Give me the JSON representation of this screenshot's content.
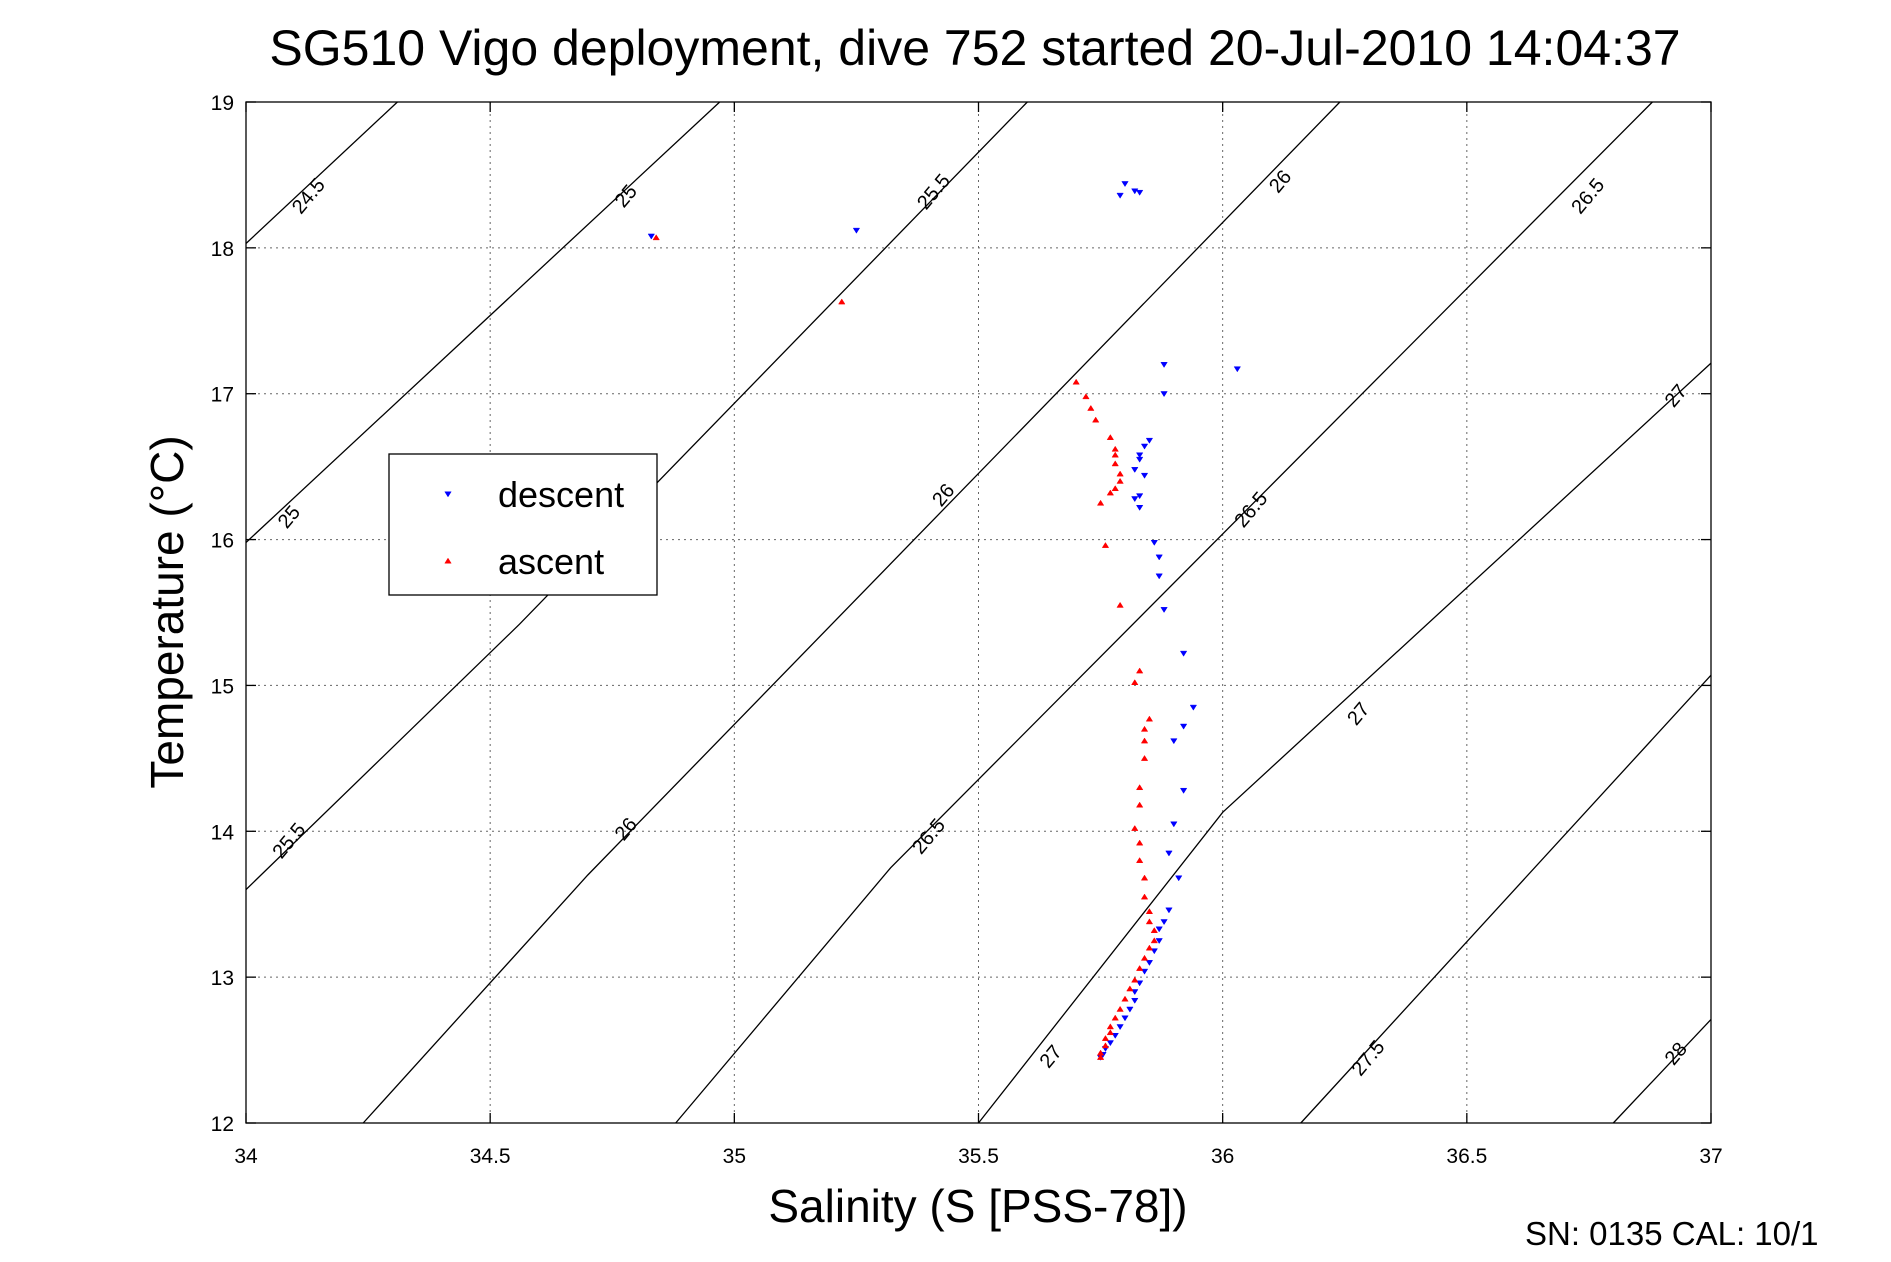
{
  "chart_data": {
    "type": "scatter",
    "title": "SG510 Vigo deployment, dive 752 started 20-Jul-2010 14:04:37",
    "xlabel": "Salinity (S [PSS-78])",
    "ylabel": "Temperature (°C)",
    "xlim": [
      34,
      37
    ],
    "ylim": [
      12,
      19
    ],
    "xticks": [
      "34",
      "34.5",
      "35",
      "35.5",
      "36",
      "36.5",
      "37"
    ],
    "yticks": [
      "12",
      "13",
      "14",
      "15",
      "16",
      "17",
      "18",
      "19"
    ],
    "grid": true,
    "legend_position": "left",
    "footer": "SN: 0135  CAL: 10/1",
    "contours": [
      {
        "sigma": 24.5,
        "points": [
          [
            34,
            18.03
          ],
          [
            34.31,
            19
          ]
        ]
      },
      {
        "sigma": 25.0,
        "points": [
          [
            34,
            15.98
          ],
          [
            34.97,
            19
          ]
        ]
      },
      {
        "sigma": 25.5,
        "points": [
          [
            34,
            13.6
          ],
          [
            34.56,
            15.42
          ],
          [
            35.6,
            19
          ]
        ]
      },
      {
        "sigma": 26.0,
        "points": [
          [
            34.24,
            12
          ],
          [
            34.7,
            13.7
          ],
          [
            36.24,
            19
          ]
        ]
      },
      {
        "sigma": 26.5,
        "points": [
          [
            34.88,
            12
          ],
          [
            35.32,
            13.75
          ],
          [
            36.88,
            19
          ]
        ]
      },
      {
        "sigma": 27.0,
        "points": [
          [
            35.5,
            12
          ],
          [
            36.0,
            14.13
          ],
          [
            37,
            17.21
          ]
        ]
      },
      {
        "sigma": 27.5,
        "points": [
          [
            36.16,
            12
          ],
          [
            37,
            15.07
          ]
        ]
      },
      {
        "sigma": 28.0,
        "points": [
          [
            36.8,
            12
          ],
          [
            37,
            12.71
          ]
        ]
      }
    ],
    "contour_labels": [
      {
        "text": "24.5",
        "s": 34.13,
        "t": 18.35,
        "angle": -50
      },
      {
        "text": "25",
        "s": 34.78,
        "t": 18.35,
        "angle": -50
      },
      {
        "text": "25.5",
        "s": 35.41,
        "t": 18.38,
        "angle": -50
      },
      {
        "text": "26",
        "s": 36.12,
        "t": 18.45,
        "angle": -50
      },
      {
        "text": "26.5",
        "s": 36.75,
        "t": 18.35,
        "angle": -50
      },
      {
        "text": "25",
        "s": 34.09,
        "t": 16.15,
        "angle": -50
      },
      {
        "text": "26",
        "s": 35.43,
        "t": 16.3,
        "angle": -50
      },
      {
        "text": "26.5",
        "s": 36.06,
        "t": 16.2,
        "angle": -50
      },
      {
        "text": "27",
        "s": 36.93,
        "t": 16.98,
        "angle": -50
      },
      {
        "text": "25.5",
        "s": 34.09,
        "t": 13.93,
        "angle": -50
      },
      {
        "text": "26",
        "s": 34.78,
        "t": 14.01,
        "angle": -50
      },
      {
        "text": "26.5",
        "s": 35.4,
        "t": 13.96,
        "angle": -50
      },
      {
        "text": "27",
        "s": 36.28,
        "t": 14.8,
        "angle": -50
      },
      {
        "text": "27",
        "s": 35.65,
        "t": 12.45,
        "angle": -50
      },
      {
        "text": "27.5",
        "s": 36.3,
        "t": 12.44,
        "angle": -50
      },
      {
        "text": "28",
        "s": 36.93,
        "t": 12.47,
        "angle": -50
      }
    ],
    "series": [
      {
        "name": "descent",
        "color": "#0000ff",
        "marker": "triangle-down",
        "points": [
          [
            35.8,
            18.44
          ],
          [
            35.79,
            18.36
          ],
          [
            35.82,
            18.39
          ],
          [
            35.83,
            18.38
          ],
          [
            34.83,
            18.08
          ],
          [
            35.25,
            18.12
          ],
          [
            35.88,
            17.2
          ],
          [
            35.88,
            17.0
          ],
          [
            36.03,
            17.17
          ],
          [
            35.85,
            16.68
          ],
          [
            35.84,
            16.64
          ],
          [
            35.83,
            16.58
          ],
          [
            35.83,
            16.55
          ],
          [
            35.82,
            16.48
          ],
          [
            35.84,
            16.44
          ],
          [
            35.83,
            16.3
          ],
          [
            35.82,
            16.28
          ],
          [
            35.83,
            16.22
          ],
          [
            35.86,
            15.98
          ],
          [
            35.87,
            15.88
          ],
          [
            35.87,
            15.75
          ],
          [
            35.88,
            15.52
          ],
          [
            35.92,
            15.22
          ],
          [
            35.94,
            14.85
          ],
          [
            35.92,
            14.72
          ],
          [
            35.9,
            14.62
          ],
          [
            35.92,
            14.28
          ],
          [
            35.9,
            14.05
          ],
          [
            35.89,
            13.85
          ],
          [
            35.91,
            13.68
          ],
          [
            35.89,
            13.46
          ],
          [
            35.88,
            13.38
          ],
          [
            35.87,
            13.33
          ],
          [
            35.87,
            13.25
          ],
          [
            35.86,
            13.18
          ],
          [
            35.85,
            13.1
          ],
          [
            35.84,
            13.04
          ],
          [
            35.83,
            12.96
          ],
          [
            35.82,
            12.9
          ],
          [
            35.82,
            12.84
          ],
          [
            35.81,
            12.78
          ],
          [
            35.8,
            12.72
          ],
          [
            35.79,
            12.66
          ],
          [
            35.78,
            12.6
          ],
          [
            35.77,
            12.55
          ],
          [
            35.76,
            12.51
          ],
          [
            35.755,
            12.47
          ],
          [
            35.75,
            12.45
          ]
        ]
      },
      {
        "name": "ascent",
        "color": "#ff0000",
        "marker": "triangle-up",
        "points": [
          [
            34.84,
            18.07
          ],
          [
            35.22,
            17.63
          ],
          [
            35.7,
            17.08
          ],
          [
            35.72,
            16.98
          ],
          [
            35.73,
            16.9
          ],
          [
            35.74,
            16.82
          ],
          [
            35.77,
            16.7
          ],
          [
            35.78,
            16.62
          ],
          [
            35.78,
            16.58
          ],
          [
            35.78,
            16.52
          ],
          [
            35.79,
            16.45
          ],
          [
            35.79,
            16.4
          ],
          [
            35.78,
            16.35
          ],
          [
            35.77,
            16.32
          ],
          [
            35.75,
            16.25
          ],
          [
            35.76,
            15.96
          ],
          [
            35.79,
            15.55
          ],
          [
            35.83,
            15.1
          ],
          [
            35.82,
            15.02
          ],
          [
            35.85,
            14.77
          ],
          [
            35.84,
            14.7
          ],
          [
            35.84,
            14.62
          ],
          [
            35.84,
            14.5
          ],
          [
            35.83,
            14.3
          ],
          [
            35.83,
            14.18
          ],
          [
            35.82,
            14.02
          ],
          [
            35.83,
            13.92
          ],
          [
            35.83,
            13.8
          ],
          [
            35.84,
            13.68
          ],
          [
            35.84,
            13.55
          ],
          [
            35.85,
            13.45
          ],
          [
            35.85,
            13.38
          ],
          [
            35.86,
            13.32
          ],
          [
            35.86,
            13.25
          ],
          [
            35.85,
            13.2
          ],
          [
            35.84,
            13.13
          ],
          [
            35.83,
            13.06
          ],
          [
            35.82,
            12.98
          ],
          [
            35.81,
            12.92
          ],
          [
            35.8,
            12.85
          ],
          [
            35.79,
            12.78
          ],
          [
            35.78,
            12.72
          ],
          [
            35.77,
            12.66
          ],
          [
            35.77,
            12.62
          ],
          [
            35.76,
            12.58
          ],
          [
            35.76,
            12.53
          ],
          [
            35.75,
            12.48
          ],
          [
            35.75,
            12.45
          ]
        ]
      }
    ]
  }
}
